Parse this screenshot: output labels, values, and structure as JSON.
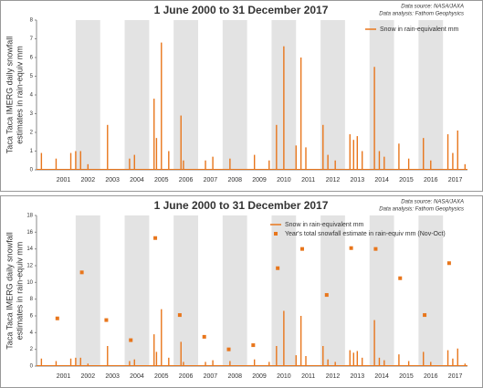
{
  "chart_data": [
    {
      "type": "bar",
      "title": "1 June 2000 to 31 December 2017",
      "source": [
        "Data source: NASA/JAXA",
        "Data analysis: Fathom Geophysics"
      ],
      "ylabel": [
        "Taca Taca IMERG daily snowfall",
        "estimates in rain-equiv mm"
      ],
      "legend": "upper right",
      "xlim": [
        2000.4,
        2018
      ],
      "xticks": [
        {
          "value": 2001.5,
          "label": "2001"
        },
        {
          "value": 2002.5,
          "label": "2002"
        },
        {
          "value": 2003.5,
          "label": "2003"
        },
        {
          "value": 2004.5,
          "label": "2004"
        },
        {
          "value": 2005.5,
          "label": "2005"
        },
        {
          "value": 2006.5,
          "label": "2006"
        },
        {
          "value": 2007.5,
          "label": "2007"
        },
        {
          "value": 2008.5,
          "label": "2008"
        },
        {
          "value": 2009.5,
          "label": "2009"
        },
        {
          "value": 2010.5,
          "label": "2010"
        },
        {
          "value": 2011.5,
          "label": "2011"
        },
        {
          "value": 2012.5,
          "label": "2012"
        },
        {
          "value": 2013.5,
          "label": "2013"
        },
        {
          "value": 2014.5,
          "label": "2014"
        },
        {
          "value": 2015.5,
          "label": "2015"
        },
        {
          "value": 2016.5,
          "label": "2016"
        },
        {
          "value": 2017.5,
          "label": "2017"
        }
      ],
      "ylim": [
        0,
        8
      ],
      "yticks": [
        0,
        1,
        2,
        3,
        4,
        5,
        6,
        7,
        8
      ],
      "series": [
        {
          "name": "Snow in rain-equivalent mm",
          "color": "#e8761c",
          "type": "bar",
          "x": [
            2000.6,
            2001.2,
            2001.8,
            2002.0,
            2002.2,
            2002.5,
            2003.3,
            2004.2,
            2004.4,
            2005.2,
            2005.3,
            2005.5,
            2005.8,
            2006.3,
            2006.4,
            2007.3,
            2007.6,
            2008.3,
            2009.3,
            2009.9,
            2010.2,
            2010.5,
            2011.0,
            2011.2,
            2011.4,
            2012.1,
            2012.3,
            2012.6,
            2013.2,
            2013.35,
            2013.5,
            2013.7,
            2014.2,
            2014.4,
            2014.6,
            2015.2,
            2015.6,
            2016.2,
            2016.5,
            2017.2,
            2017.4,
            2017.6,
            2017.9
          ],
          "values": [
            0.9,
            0.6,
            0.9,
            1.0,
            1.0,
            0.3,
            2.4,
            0.6,
            0.8,
            3.8,
            1.7,
            6.8,
            1.0,
            2.9,
            0.5,
            0.5,
            0.7,
            0.6,
            0.8,
            0.5,
            2.4,
            6.6,
            1.3,
            6.0,
            1.2,
            2.4,
            0.8,
            0.5,
            1.9,
            1.6,
            1.8,
            1.0,
            5.5,
            1.0,
            0.7,
            1.4,
            0.6,
            1.7,
            0.5,
            1.9,
            0.9,
            2.1,
            0.3
          ]
        }
      ]
    },
    {
      "type": "combo",
      "title": "1 June 2000 to 31 December 2017",
      "source": [
        "Data source: NASA/JAXA",
        "Data analysis: Fathom Geophysics"
      ],
      "ylabel": [
        "Taca Taca IMERG daily snowfall",
        "estimates in rain-equiv mm"
      ],
      "legend": "upper center",
      "xlim": [
        2000.4,
        2018
      ],
      "xticks": [
        {
          "value": 2001.5,
          "label": "2001"
        },
        {
          "value": 2002.5,
          "label": "2002"
        },
        {
          "value": 2003.5,
          "label": "2003"
        },
        {
          "value": 2004.5,
          "label": "2004"
        },
        {
          "value": 2005.5,
          "label": "2005"
        },
        {
          "value": 2006.5,
          "label": "2006"
        },
        {
          "value": 2007.5,
          "label": "2007"
        },
        {
          "value": 2008.5,
          "label": "2008"
        },
        {
          "value": 2009.5,
          "label": "2009"
        },
        {
          "value": 2010.5,
          "label": "2010"
        },
        {
          "value": 2011.5,
          "label": "2011"
        },
        {
          "value": 2012.5,
          "label": "2012"
        },
        {
          "value": 2013.5,
          "label": "2013"
        },
        {
          "value": 2014.5,
          "label": "2014"
        },
        {
          "value": 2015.5,
          "label": "2015"
        },
        {
          "value": 2016.5,
          "label": "2016"
        },
        {
          "value": 2017.5,
          "label": "2017"
        }
      ],
      "ylim": [
        0,
        18
      ],
      "yticks": [
        0,
        2,
        4,
        6,
        8,
        10,
        12,
        14,
        16,
        18
      ],
      "series": [
        {
          "name": "Snow in rain-equivalent mm",
          "color": "#e8761c",
          "type": "bar",
          "x": [
            2000.6,
            2001.2,
            2001.8,
            2002.0,
            2002.2,
            2002.5,
            2003.3,
            2004.2,
            2004.4,
            2005.2,
            2005.3,
            2005.5,
            2005.8,
            2006.3,
            2006.4,
            2007.3,
            2007.6,
            2008.3,
            2009.3,
            2009.9,
            2010.2,
            2010.5,
            2011.0,
            2011.2,
            2011.4,
            2012.1,
            2012.3,
            2012.6,
            2013.2,
            2013.35,
            2013.5,
            2013.7,
            2014.2,
            2014.4,
            2014.6,
            2015.2,
            2015.6,
            2016.2,
            2016.5,
            2017.2,
            2017.4,
            2017.6,
            2017.9
          ],
          "values": [
            0.9,
            0.6,
            0.9,
            1.0,
            1.0,
            0.3,
            2.4,
            0.6,
            0.8,
            3.8,
            1.7,
            6.8,
            1.0,
            2.9,
            0.5,
            0.5,
            0.7,
            0.6,
            0.8,
            0.5,
            2.4,
            6.6,
            1.3,
            6.0,
            1.2,
            2.4,
            0.8,
            0.5,
            1.9,
            1.6,
            1.8,
            1.0,
            5.5,
            1.0,
            0.7,
            1.4,
            0.6,
            1.7,
            0.5,
            1.9,
            0.9,
            2.1,
            0.3
          ]
        },
        {
          "name": "Year's total snowfall estimate in rain-equiv mm (Nov-Oct)",
          "color": "#e8761c",
          "type": "scatter",
          "x": [
            2001.25,
            2002.25,
            2003.25,
            2004.25,
            2005.25,
            2006.25,
            2007.25,
            2008.25,
            2009.25,
            2010.25,
            2011.25,
            2012.25,
            2013.25,
            2014.25,
            2015.25,
            2016.25,
            2017.25
          ],
          "values": [
            5.7,
            11.2,
            5.5,
            3.1,
            15.3,
            6.1,
            3.5,
            2.0,
            2.5,
            11.7,
            14.0,
            8.5,
            14.1,
            14.0,
            10.5,
            6.1,
            12.3
          ]
        }
      ]
    }
  ]
}
